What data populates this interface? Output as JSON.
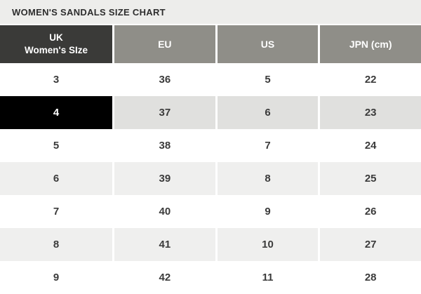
{
  "title": "WOMEN'S SANDALS SIZE CHART",
  "colors": {
    "title_bar_bg": "#ededeb",
    "header_dark_bg": "#3a3a38",
    "header_gray_bg": "#8f8e88",
    "row_alt_bg": "#efefee",
    "row_selected_bg": "#e0e0de",
    "selected_size_cell_bg": "#000000",
    "text_dark": "#3b3b3b"
  },
  "table": {
    "columns": [
      {
        "key": "uk",
        "label": "UK\nWomen's SIze"
      },
      {
        "key": "eu",
        "label": "EU"
      },
      {
        "key": "us",
        "label": "US"
      },
      {
        "key": "jpn",
        "label": "JPN (cm)"
      }
    ],
    "selected_uk_size": "4",
    "rows": [
      {
        "uk": "3",
        "eu": "36",
        "us": "5",
        "jpn": "22"
      },
      {
        "uk": "4",
        "eu": "37",
        "us": "6",
        "jpn": "23"
      },
      {
        "uk": "5",
        "eu": "38",
        "us": "7",
        "jpn": "24"
      },
      {
        "uk": "6",
        "eu": "39",
        "us": "8",
        "jpn": "25"
      },
      {
        "uk": "7",
        "eu": "40",
        "us": "9",
        "jpn": "26"
      },
      {
        "uk": "8",
        "eu": "41",
        "us": "10",
        "jpn": "27"
      },
      {
        "uk": "9",
        "eu": "42",
        "us": "11",
        "jpn": "28"
      }
    ]
  }
}
